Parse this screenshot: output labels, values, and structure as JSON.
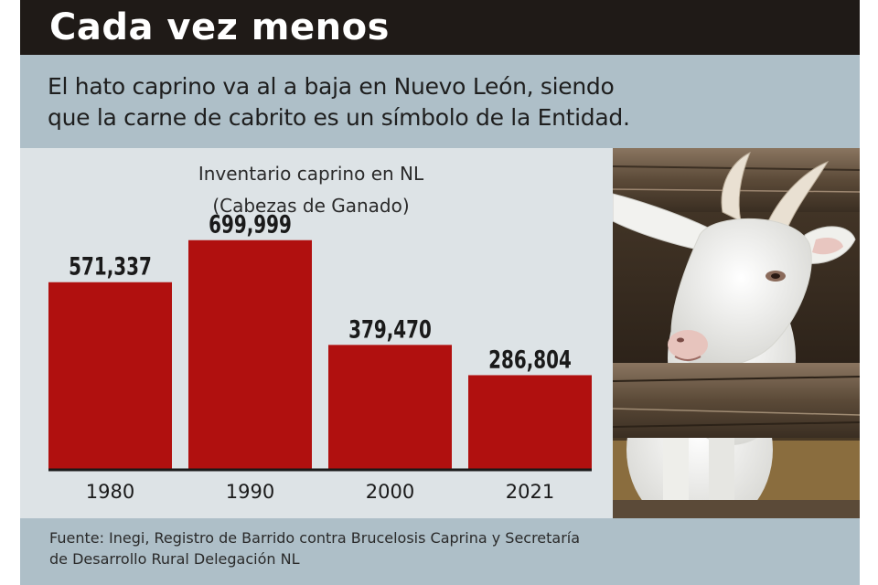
{
  "header": {
    "title": "Cada vez menos",
    "subtitle_line1": "El hato caprino va al a baja en Nuevo León, siendo",
    "subtitle_line2": "que la carne de cabrito es un símbolo de la Entidad."
  },
  "chart_data": {
    "type": "bar",
    "title": "Inventario caprino en NL",
    "subtitle": "(Cabezas de Ganado)",
    "categories": [
      "1980",
      "1990",
      "2000",
      "2021"
    ],
    "values": [
      571337,
      699999,
      379470,
      286804
    ],
    "data_labels": [
      "571,337",
      "699,999",
      "379,470",
      "286,804"
    ],
    "ylim": [
      0,
      800000
    ],
    "bar_color": "#b0100f",
    "grid": false,
    "legend": "none"
  },
  "footer": {
    "source_line1": "Fuente: Inegi, Registro de Barrido contra Brucelosis Caprina y Secretaría",
    "source_line2": "de Desarrollo Rural Delegación NL"
  },
  "photo": {
    "subject": "goat-photo"
  }
}
